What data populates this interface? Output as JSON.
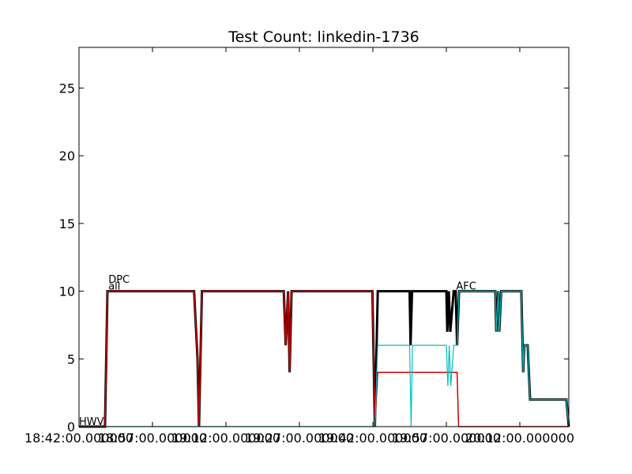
{
  "chart_data": {
    "type": "line",
    "title": "Test Count: linkedin-1736",
    "xlabel": "",
    "ylabel": "",
    "ylim": [
      0,
      28
    ],
    "xlim": [
      0,
      100
    ],
    "yticks": [
      0,
      5,
      10,
      15,
      20,
      25
    ],
    "xtick_labels": [
      {
        "x": 0,
        "label": "18:42:00.000000"
      },
      {
        "x": 15,
        "label": "18:57:00.000000"
      },
      {
        "x": 30,
        "label": "19:12:00.000000"
      },
      {
        "x": 45,
        "label": "19:27:00.000000"
      },
      {
        "x": 60,
        "label": "19:42:00.000000"
      },
      {
        "x": 75,
        "label": "19:57:00.000000"
      },
      {
        "x": 90,
        "label": "20:12:00.000000"
      }
    ],
    "grid": false,
    "annotations": [
      {
        "text": "DPC",
        "x": 6,
        "y": 10.5
      },
      {
        "text": "all",
        "x": 6,
        "y": 10
      },
      {
        "text": "AFC",
        "x": 77,
        "y": 10
      },
      {
        "text": "HWV",
        "x": 0,
        "y": 0
      }
    ],
    "series": [
      {
        "color": "#000000",
        "width": 3,
        "x": [
          0,
          5.3,
          5.8,
          23.5,
          24.2,
          24.5,
          25.1,
          41.8,
          42.2,
          42.7,
          43.0,
          43.4,
          59.9,
          60.4,
          61.0,
          67.5,
          67.7,
          68.0,
          75.0,
          75.2,
          75.5,
          75.8,
          76.5,
          76.9,
          77.2,
          77.6,
          85.0,
          85.2,
          85.6,
          85.8,
          86.2,
          86.5,
          90.3,
          90.7,
          90.9,
          91.6,
          92.1,
          99.5,
          100
        ],
        "y": [
          0,
          0,
          10,
          10,
          5,
          0,
          10,
          10,
          6,
          10,
          4,
          10,
          10,
          0,
          10,
          10,
          6,
          10,
          10,
          7,
          10,
          7,
          10,
          10,
          6,
          10,
          10,
          7,
          10,
          7,
          10,
          10,
          10,
          4,
          6,
          6,
          2,
          2,
          0
        ]
      },
      {
        "color": "#cc0000",
        "width": 1.5,
        "x": [
          0,
          5.3,
          5.8,
          23.5,
          24.2,
          24.5,
          25.1,
          41.8,
          42.2,
          42.7,
          43.0,
          43.4,
          59.9,
          60.4,
          61.0,
          77.2,
          77.5,
          100
        ],
        "y": [
          0,
          0,
          10,
          10,
          5,
          0,
          10,
          10,
          6,
          10,
          4,
          10,
          10,
          0,
          4,
          4,
          0,
          0
        ]
      },
      {
        "color": "#00bfbf",
        "width": 1.2,
        "x": [
          0,
          59.9,
          60.4,
          61.0,
          67.5,
          67.8,
          68.1,
          75.0,
          75.3,
          75.6,
          75.9,
          76.5,
          76.9,
          77.2,
          77.6,
          85.0,
          85.2,
          85.6,
          85.8,
          86.2,
          86.5,
          90.3,
          90.7,
          90.9,
          91.6,
          92.1,
          99.5,
          100
        ],
        "y": [
          0,
          0,
          0,
          6,
          6,
          0,
          6,
          6,
          3,
          6,
          3,
          6,
          6,
          6,
          10,
          10,
          7,
          10,
          7,
          10,
          10,
          10,
          4,
          6,
          6,
          2,
          2,
          0
        ]
      }
    ]
  }
}
